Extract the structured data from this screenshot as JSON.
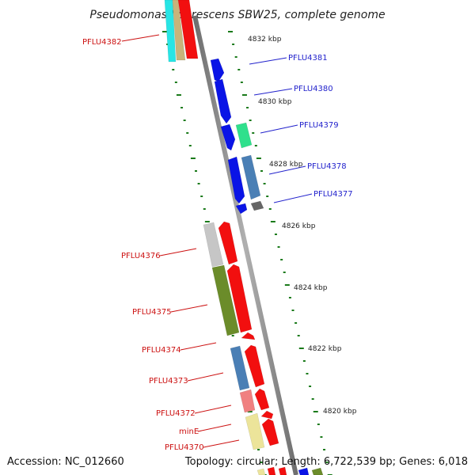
{
  "title": "Pseudomonas fluorescens SBW25, complete genome",
  "footer": {
    "accession": "Accession: NC_012660",
    "summary": "Topology: circular; Length: 6,722,539 bp; Genes: 6,018"
  },
  "colors": {
    "forward_label": "#2222cc",
    "reverse_label": "#cc1111",
    "backbone": "#888888",
    "ruler_dashes": "#1a7a1a"
  },
  "ruler_ticks": [
    {
      "label": "4832 kbp"
    },
    {
      "label": "4830 kbp"
    },
    {
      "label": "4828 kbp"
    },
    {
      "label": "4826 kbp"
    },
    {
      "label": "4824 kbp"
    },
    {
      "label": "4822 kbp"
    },
    {
      "label": "4820 kbp"
    }
  ],
  "gene_labels": [
    {
      "name": "PFLU4382",
      "strand": "reverse"
    },
    {
      "name": "PFLU4381",
      "strand": "forward"
    },
    {
      "name": "PFLU4380",
      "strand": "forward"
    },
    {
      "name": "PFLU4379",
      "strand": "forward"
    },
    {
      "name": "PFLU4378",
      "strand": "forward"
    },
    {
      "name": "PFLU4377",
      "strand": "forward"
    },
    {
      "name": "PFLU4376",
      "strand": "reverse"
    },
    {
      "name": "PFLU4375",
      "strand": "reverse"
    },
    {
      "name": "PFLU4374",
      "strand": "reverse"
    },
    {
      "name": "PFLU4373",
      "strand": "reverse"
    },
    {
      "name": "PFLU4372",
      "strand": "reverse"
    },
    {
      "name": "minE",
      "strand": "reverse"
    },
    {
      "name": "PFLU4370",
      "strand": "reverse"
    }
  ],
  "feature_colors": {
    "cds_forward": "#0a14e6",
    "cds_reverse": "#f20f0f",
    "cog_cyan": "#27e5e5",
    "cog_tan": "#c8b47a",
    "cog_teal": "#2fe08c",
    "cog_steelblue": "#4a7fb5",
    "cog_grey": "#666666",
    "cog_lightgrey": "#c6c6c6",
    "cog_olive": "#6b8c2a",
    "cog_pink": "#f08080",
    "cog_paleyellow": "#ece49a"
  }
}
